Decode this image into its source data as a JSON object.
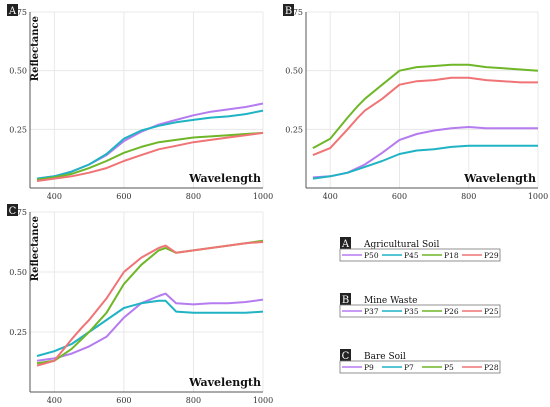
{
  "colors": {
    "P50": "#b57cf0",
    "P45": "#1fb3c4",
    "P18": "#6fb628",
    "P29": "#f07476",
    "P37": "#b57cf0",
    "P35": "#1fb3c4",
    "P26": "#6fb628",
    "P25": "#f07476",
    "P9": "#b57cf0",
    "P7": "#1fb3c4",
    "P5": "#6fb628",
    "P28": "#f07476",
    "panel_label_bg": "#222222",
    "grid": "#e8e8e8"
  },
  "chart_data": [
    {
      "type": "line",
      "panel": "A",
      "xlabel": "Wavelength",
      "ylabel": "Reflectance",
      "xlim": [
        330,
        1000
      ],
      "ylim": [
        0,
        0.75
      ],
      "xticks": [
        "400",
        "600",
        "800",
        "1000"
      ],
      "yticks": [
        "0.25",
        "0.50",
        "0.75"
      ],
      "grid": true,
      "series": [
        {
          "name": "P50",
          "x": [
            350,
            400,
            450,
            500,
            550,
            600,
            650,
            700,
            750,
            800,
            850,
            900,
            950,
            1000
          ],
          "y": [
            0.04,
            0.05,
            0.07,
            0.1,
            0.14,
            0.2,
            0.24,
            0.27,
            0.29,
            0.31,
            0.325,
            0.335,
            0.345,
            0.36
          ]
        },
        {
          "name": "P45",
          "x": [
            350,
            400,
            450,
            500,
            550,
            600,
            650,
            700,
            750,
            800,
            850,
            900,
            950,
            1000
          ],
          "y": [
            0.04,
            0.05,
            0.07,
            0.1,
            0.145,
            0.21,
            0.245,
            0.265,
            0.28,
            0.29,
            0.3,
            0.305,
            0.315,
            0.33
          ]
        },
        {
          "name": "P18",
          "x": [
            350,
            400,
            450,
            500,
            550,
            600,
            650,
            700,
            750,
            800,
            850,
            900,
            950,
            1000
          ],
          "y": [
            0.035,
            0.045,
            0.06,
            0.085,
            0.115,
            0.15,
            0.175,
            0.195,
            0.205,
            0.215,
            0.22,
            0.225,
            0.23,
            0.235
          ]
        },
        {
          "name": "P29",
          "x": [
            350,
            400,
            450,
            500,
            550,
            600,
            650,
            700,
            750,
            800,
            850,
            900,
            950,
            1000
          ],
          "y": [
            0.03,
            0.04,
            0.05,
            0.065,
            0.085,
            0.115,
            0.14,
            0.165,
            0.18,
            0.195,
            0.205,
            0.215,
            0.225,
            0.235
          ]
        }
      ]
    },
    {
      "type": "line",
      "panel": "B",
      "xlabel": "Wavelength",
      "ylabel": "",
      "xlim": [
        330,
        1000
      ],
      "ylim": [
        0,
        0.75
      ],
      "xticks": [
        "400",
        "600",
        "800",
        "1000"
      ],
      "yticks": [
        "0.25",
        "0.50",
        "0.75"
      ],
      "grid": true,
      "series": [
        {
          "name": "P37",
          "x": [
            350,
            400,
            450,
            500,
            550,
            600,
            650,
            700,
            750,
            800,
            850,
            900,
            950,
            1000
          ],
          "y": [
            0.045,
            0.05,
            0.065,
            0.1,
            0.15,
            0.205,
            0.23,
            0.245,
            0.255,
            0.26,
            0.255,
            0.255,
            0.255,
            0.255
          ]
        },
        {
          "name": "P35",
          "x": [
            350,
            400,
            450,
            500,
            550,
            600,
            650,
            700,
            750,
            800,
            850,
            900,
            950,
            1000
          ],
          "y": [
            0.04,
            0.05,
            0.065,
            0.09,
            0.115,
            0.145,
            0.16,
            0.165,
            0.175,
            0.18,
            0.18,
            0.18,
            0.18,
            0.18
          ]
        },
        {
          "name": "P26",
          "x": [
            350,
            400,
            450,
            480,
            500,
            550,
            600,
            650,
            700,
            750,
            800,
            850,
            900,
            950,
            1000
          ],
          "y": [
            0.17,
            0.21,
            0.3,
            0.35,
            0.38,
            0.44,
            0.5,
            0.515,
            0.52,
            0.525,
            0.525,
            0.515,
            0.51,
            0.505,
            0.5
          ]
        },
        {
          "name": "P25",
          "x": [
            350,
            400,
            450,
            480,
            500,
            550,
            600,
            650,
            700,
            750,
            800,
            850,
            900,
            950,
            1000
          ],
          "y": [
            0.14,
            0.17,
            0.25,
            0.3,
            0.33,
            0.38,
            0.44,
            0.455,
            0.46,
            0.47,
            0.47,
            0.46,
            0.455,
            0.45,
            0.45
          ]
        }
      ]
    },
    {
      "type": "line",
      "panel": "C",
      "xlabel": "Wavelength",
      "ylabel": "Reflectance",
      "xlim": [
        330,
        1000
      ],
      "ylim": [
        0,
        0.75
      ],
      "xticks": [
        "400",
        "600",
        "800",
        "1000"
      ],
      "yticks": [
        "0.25",
        "0.50",
        "0.75"
      ],
      "grid": true,
      "series": [
        {
          "name": "P9",
          "x": [
            350,
            400,
            450,
            500,
            550,
            600,
            650,
            700,
            720,
            750,
            800,
            850,
            900,
            950,
            1000
          ],
          "y": [
            0.13,
            0.14,
            0.16,
            0.19,
            0.23,
            0.31,
            0.37,
            0.4,
            0.41,
            0.37,
            0.365,
            0.37,
            0.37,
            0.375,
            0.385
          ]
        },
        {
          "name": "P7",
          "x": [
            350,
            400,
            450,
            500,
            550,
            600,
            650,
            700,
            720,
            750,
            800,
            850,
            900,
            950,
            1000
          ],
          "y": [
            0.15,
            0.17,
            0.2,
            0.25,
            0.3,
            0.35,
            0.37,
            0.38,
            0.38,
            0.335,
            0.33,
            0.33,
            0.33,
            0.33,
            0.335
          ]
        },
        {
          "name": "P5",
          "x": [
            350,
            400,
            450,
            500,
            550,
            600,
            650,
            700,
            720,
            750,
            800,
            850,
            900,
            950,
            1000
          ],
          "y": [
            0.12,
            0.13,
            0.18,
            0.25,
            0.33,
            0.45,
            0.53,
            0.59,
            0.6,
            0.58,
            0.59,
            0.6,
            0.61,
            0.62,
            0.63
          ]
        },
        {
          "name": "P28",
          "x": [
            350,
            400,
            450,
            480,
            500,
            550,
            600,
            650,
            700,
            720,
            750,
            800,
            850,
            900,
            950,
            1000
          ],
          "y": [
            0.11,
            0.13,
            0.22,
            0.27,
            0.3,
            0.39,
            0.5,
            0.56,
            0.6,
            0.61,
            0.58,
            0.59,
            0.6,
            0.61,
            0.62,
            0.625
          ]
        }
      ]
    }
  ],
  "legend": [
    {
      "label": "A",
      "title": "Agricultural Soil",
      "items": [
        "P50",
        "P45",
        "P18",
        "P29"
      ]
    },
    {
      "label": "B",
      "title": "Mine Waste",
      "items": [
        "P37",
        "P35",
        "P26",
        "P25"
      ]
    },
    {
      "label": "C",
      "title": "Bare Soil",
      "items": [
        "P9",
        "P7",
        "P5",
        "P28"
      ]
    }
  ]
}
